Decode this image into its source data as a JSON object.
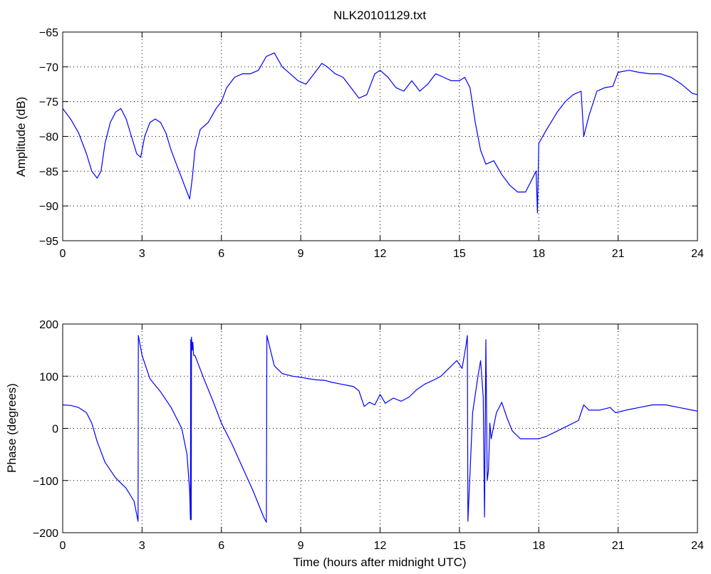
{
  "figure": {
    "title": "NLK20101129.txt"
  },
  "chart_data": [
    {
      "type": "line",
      "title": "NLK20101129.txt",
      "xlabel": "",
      "ylabel": "Amplitude (dB)",
      "xlim": [
        0,
        24
      ],
      "ylim": [
        -95,
        -65
      ],
      "xticks": [
        0,
        3,
        6,
        9,
        12,
        15,
        18,
        21,
        24
      ],
      "yticks": [
        -95,
        -90,
        -85,
        -80,
        -75,
        -70,
        -65
      ],
      "grid": true,
      "line_color": "#0000ff",
      "series": [
        {
          "x": [
            0,
            0.3,
            0.6,
            0.9,
            1.1,
            1.3,
            1.45,
            1.6,
            1.8,
            2.0,
            2.2,
            2.4,
            2.6,
            2.8,
            2.95,
            3.1,
            3.3,
            3.5,
            3.7,
            3.9,
            4.1,
            4.3,
            4.5,
            4.7,
            4.8,
            4.9,
            5.0,
            5.2,
            5.5,
            5.8,
            6.0,
            6.2,
            6.5,
            6.8,
            7.1,
            7.4,
            7.7,
            8.0,
            8.3,
            8.6,
            8.9,
            9.2,
            9.5,
            9.8,
            10.0,
            10.3,
            10.6,
            10.9,
            11.2,
            11.5,
            11.8,
            12.0,
            12.3,
            12.6,
            12.9,
            13.2,
            13.5,
            13.8,
            14.1,
            14.4,
            14.7,
            15.0,
            15.2,
            15.4,
            15.6,
            15.8,
            16.0,
            16.3,
            16.6,
            16.9,
            17.2,
            17.5,
            17.7,
            17.9,
            17.95,
            18.0,
            18.3,
            18.7,
            19.0,
            19.3,
            19.6,
            19.7,
            19.9,
            20.2,
            20.5,
            20.8,
            21.0,
            21.4,
            21.8,
            22.2,
            22.6,
            23.0,
            23.4,
            23.8,
            24.0
          ],
          "y": [
            -76,
            -77.5,
            -79.5,
            -82.5,
            -85,
            -86,
            -85,
            -81,
            -78,
            -76.5,
            -76,
            -77.5,
            -80,
            -82.5,
            -83,
            -80,
            -78,
            -77.5,
            -78,
            -79.5,
            -82,
            -84,
            -86,
            -88,
            -89,
            -86,
            -82,
            -79,
            -78,
            -76,
            -75,
            -73,
            -71.5,
            -71,
            -71,
            -70.5,
            -68.5,
            -68,
            -70,
            -71,
            -72,
            -72.5,
            -71,
            -69.5,
            -70,
            -71,
            -71.5,
            -73,
            -74.5,
            -74,
            -71,
            -70.5,
            -71.5,
            -73,
            -73.5,
            -72,
            -73.5,
            -72.5,
            -71,
            -71.5,
            -72,
            -72,
            -71.5,
            -73,
            -78,
            -82,
            -84,
            -83.5,
            -85.5,
            -87,
            -88,
            -88,
            -86.5,
            -85,
            -91,
            -81,
            -79,
            -76.5,
            -75,
            -74,
            -73.5,
            -80,
            -77,
            -73.5,
            -73,
            -72.8,
            -70.8,
            -70.5,
            -70.8,
            -71,
            -71,
            -71.5,
            -72.5,
            -73.8,
            -74
          ]
        }
      ]
    },
    {
      "type": "line",
      "title": "",
      "xlabel": "Time (hours after midnight UTC)",
      "ylabel": "Phase (degrees)",
      "xlim": [
        0,
        24
      ],
      "ylim": [
        -200,
        200
      ],
      "xticks": [
        0,
        3,
        6,
        9,
        12,
        15,
        18,
        21,
        24
      ],
      "yticks": [
        -200,
        -100,
        0,
        100,
        200
      ],
      "grid": true,
      "line_color": "#0000ff",
      "series": [
        {
          "x": [
            0,
            0.3,
            0.6,
            0.9,
            1.1,
            1.3,
            1.6,
            2.0,
            2.4,
            2.7,
            2.85,
            2.86,
            3.0,
            3.3,
            3.7,
            4.1,
            4.5,
            4.7,
            4.8,
            4.83,
            4.84,
            4.86,
            4.87,
            4.9,
            4.92,
            4.95,
            5.0,
            5.3,
            5.7,
            6.0,
            6.4,
            6.8,
            7.2,
            7.6,
            7.7,
            7.72,
            8.0,
            8.3,
            8.7,
            9.0,
            9.3,
            9.6,
            9.9,
            10.2,
            10.5,
            10.8,
            11.0,
            11.2,
            11.4,
            11.6,
            11.8,
            12.0,
            12.2,
            12.5,
            12.8,
            13.1,
            13.4,
            13.7,
            14.0,
            14.3,
            14.6,
            14.9,
            15.1,
            15.25,
            15.3,
            15.32,
            15.5,
            15.7,
            15.8,
            15.9,
            15.95,
            16.0,
            16.05,
            16.1,
            16.15,
            16.2,
            16.4,
            16.6,
            16.8,
            17.0,
            17.3,
            17.6,
            17.9,
            18.0,
            18.3,
            18.7,
            19.1,
            19.5,
            19.7,
            19.9,
            20.3,
            20.7,
            20.9,
            21.3,
            21.8,
            22.3,
            22.8,
            23.3,
            23.8,
            24.0
          ],
          "y": [
            45,
            44,
            40,
            30,
            10,
            -25,
            -65,
            -95,
            -115,
            -140,
            -178,
            178,
            140,
            95,
            70,
            40,
            0,
            -50,
            -120,
            -175,
            170,
            -175,
            175,
            150,
            165,
            140,
            140,
            100,
            50,
            10,
            -30,
            -75,
            -120,
            -170,
            -180,
            178,
            120,
            105,
            100,
            98,
            95,
            93,
            92,
            88,
            85,
            82,
            80,
            72,
            42,
            50,
            45,
            65,
            48,
            58,
            52,
            60,
            75,
            85,
            92,
            100,
            115,
            130,
            115,
            160,
            178,
            -178,
            30,
            100,
            130,
            60,
            -170,
            170,
            -100,
            -80,
            10,
            -20,
            30,
            50,
            20,
            -5,
            -20,
            -20,
            -20,
            -20,
            -15,
            -5,
            5,
            15,
            45,
            35,
            35,
            40,
            30,
            35,
            40,
            45,
            45,
            40,
            35,
            33
          ]
        }
      ]
    }
  ]
}
